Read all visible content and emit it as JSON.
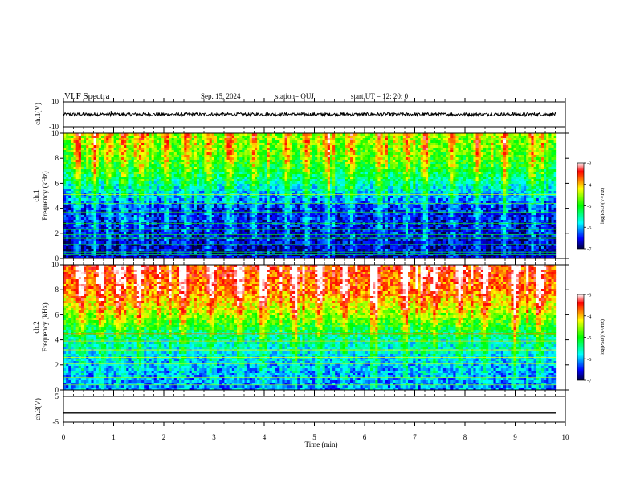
{
  "header": {
    "title": "VLF Spectra",
    "date": "Sep. 15, 2024",
    "station": "station= OUJ",
    "start": "start  UT  =   12: 20: 0"
  },
  "chart_data": [
    {
      "type": "line",
      "id": "ch1-waveform",
      "ylabel": "ch.1(V)",
      "xlim": [
        0,
        10
      ],
      "ylim": [
        -10,
        10
      ],
      "yticks": [
        {
          "v": 10,
          "label": "10"
        },
        {
          "v": -10,
          "label": "-10"
        }
      ],
      "data_extent_min": 9.82,
      "baseline": 0,
      "amplitude": 1.3,
      "spikes": [
        {
          "x": 0.95,
          "y": 2.8
        },
        {
          "x": 1.7,
          "y": 2.2
        },
        {
          "x": 4.75,
          "y": 2.0
        },
        {
          "x": 6.55,
          "y": -1.8
        },
        {
          "x": 8.95,
          "y": 1.6
        },
        {
          "x": 9.2,
          "y": -2.0
        }
      ]
    },
    {
      "type": "heatmap",
      "id": "ch1-spectrogram",
      "ylabel": "ch.1\nFrequency (kHz)",
      "xlim": [
        0,
        10
      ],
      "ylim": [
        0,
        10
      ],
      "yticks": [
        0,
        2,
        4,
        6,
        8,
        10
      ],
      "data_extent_min": 9.82,
      "colorbar": {
        "label": "log(PSD)(V²/Hz)",
        "range": [
          -7,
          -3
        ],
        "ticks": [
          -3,
          -4,
          -5,
          -6,
          -7
        ],
        "colors": [
          "#ffffff",
          "#ff0000",
          "#ffff00",
          "#00ff00",
          "#00ffff",
          "#0000ff",
          "#000040"
        ]
      },
      "level_profile": [
        {
          "f": 0,
          "v": -6.8
        },
        {
          "f": 2,
          "v": -6.6
        },
        {
          "f": 4,
          "v": -6.5
        },
        {
          "f": 6,
          "v": -5.6
        },
        {
          "f": 8,
          "v": -4.9
        },
        {
          "f": 10,
          "v": -4.6
        }
      ],
      "line_freqs_khz": [
        0.3,
        0.5,
        1.1,
        1.6,
        1.9,
        2.3,
        2.8,
        3.3,
        3.7,
        4.4,
        5.1
      ],
      "burst_minutes": [
        0.28,
        0.62,
        0.9,
        1.2,
        1.55,
        2.05,
        2.45,
        2.9,
        3.35,
        3.8,
        4.45,
        4.85,
        5.25,
        5.75,
        6.3,
        6.85,
        7.2,
        7.75,
        8.25,
        8.8,
        9.35
      ]
    },
    {
      "type": "heatmap",
      "id": "ch2-spectrogram",
      "ylabel": "ch.2\nFrequency (kHz)",
      "xlim": [
        0,
        10
      ],
      "ylim": [
        0,
        10
      ],
      "yticks": [
        0,
        2,
        4,
        6,
        8,
        10
      ],
      "data_extent_min": 9.82,
      "colorbar": {
        "label": "log(PSD)(V²/Hz)",
        "range": [
          -7,
          -3
        ],
        "ticks": [
          -3,
          -4,
          -5,
          -6,
          -7
        ],
        "colors": [
          "#ffffff",
          "#ff0000",
          "#ffff00",
          "#00ff00",
          "#00ffff",
          "#0000ff",
          "#000040"
        ]
      },
      "level_profile": [
        {
          "f": 0,
          "v": -6.2
        },
        {
          "f": 2,
          "v": -6.0
        },
        {
          "f": 4,
          "v": -5.6
        },
        {
          "f": 6,
          "v": -4.6
        },
        {
          "f": 8,
          "v": -3.8
        },
        {
          "f": 10,
          "v": -3.6
        }
      ],
      "line_freqs_khz": [
        0.4,
        1.0,
        1.5,
        2.1,
        2.6,
        3.2,
        3.9,
        4.5
      ],
      "burst_minutes": [
        0.35,
        0.75,
        1.1,
        1.5,
        2.4,
        2.95,
        3.5,
        4.0,
        4.6,
        5.1,
        5.6,
        6.2,
        6.8,
        7.4,
        7.9,
        8.4,
        9.0,
        9.5
      ]
    },
    {
      "type": "line",
      "id": "ch3-waveform",
      "ylabel": "ch.3(V)",
      "xlim": [
        0,
        10
      ],
      "ylim": [
        -5,
        5
      ],
      "yticks": [
        {
          "v": 5,
          "label": "5"
        },
        {
          "v": -5,
          "label": "-5"
        }
      ],
      "x": [
        0,
        9.82
      ],
      "y": [
        -1.5,
        -1.5
      ]
    }
  ],
  "xaxis": {
    "label": "Time  (min)",
    "ticks": [
      0,
      1,
      2,
      3,
      4,
      5,
      6,
      7,
      8,
      9,
      10
    ],
    "minor_per_major": 5
  }
}
